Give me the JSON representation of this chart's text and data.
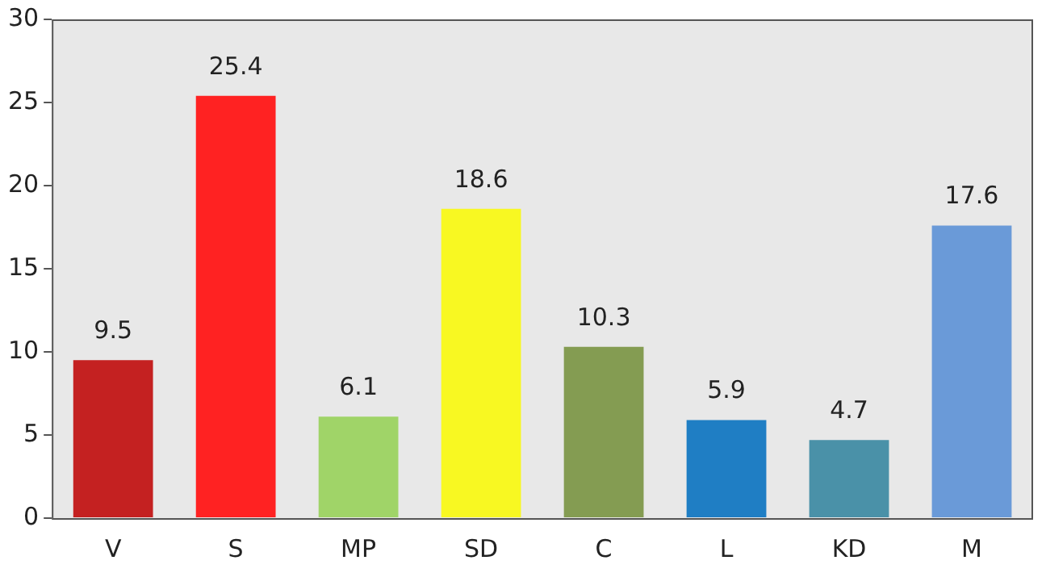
{
  "chart_data": {
    "type": "bar",
    "categories": [
      "V",
      "S",
      "MP",
      "SD",
      "C",
      "L",
      "KD",
      "M"
    ],
    "values": [
      9.5,
      25.4,
      6.1,
      18.6,
      10.3,
      5.9,
      4.7,
      17.6
    ],
    "colors": [
      "#c42121",
      "#ff2222",
      "#a0d468",
      "#f8f822",
      "#849c52",
      "#1f7ec4",
      "#4a91a8",
      "#6a9ad8"
    ],
    "ylim": [
      0,
      30
    ],
    "yticks": [
      0,
      5,
      10,
      15,
      20,
      25,
      30
    ],
    "data_labels": true,
    "grid": false,
    "legend": false
  }
}
